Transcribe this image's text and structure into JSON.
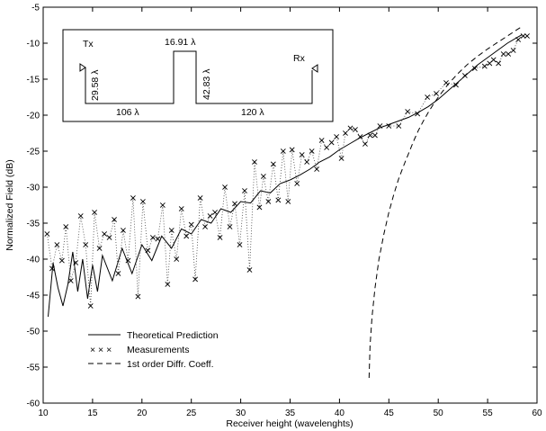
{
  "chart_data": {
    "type": "line",
    "xlabel": "Receiver height (wavelenghts)",
    "ylabel": "Normalized Field (dB)",
    "xlim": [
      10,
      60
    ],
    "ylim": [
      -60,
      -5
    ],
    "xticks": [
      10,
      15,
      20,
      25,
      30,
      35,
      40,
      45,
      50,
      55,
      60
    ],
    "yticks": [
      -60,
      -55,
      -50,
      -45,
      -40,
      -35,
      -30,
      -25,
      -20,
      -15,
      -10,
      -5
    ],
    "grid": false,
    "legend_position": "bottom-left",
    "legend": [
      {
        "label": "Theoretical Prediction",
        "style": "solid"
      },
      {
        "label": "Measurements",
        "style": "crosses"
      },
      {
        "label": "1st order Diffr. Coeff.",
        "style": "dashed"
      }
    ],
    "series": [
      {
        "name": "Theoretical Prediction",
        "style": "solid",
        "x": [
          10.5,
          11.0,
          11.5,
          12.0,
          12.5,
          13.0,
          13.5,
          14.0,
          14.5,
          15.0,
          15.5,
          16.0,
          17.0,
          18.0,
          19.0,
          20.0,
          21.0,
          22.0,
          23.0,
          24.0,
          25.0,
          26.0,
          27.0,
          28.0,
          29.0,
          30.0,
          31.0,
          32.0,
          33.0,
          34.0,
          35.0,
          36.0,
          37.0,
          38.0,
          39.0,
          40.0,
          41.0,
          42.0,
          43.0,
          44.0,
          45.0,
          46.0,
          47.0,
          48.0,
          49.0,
          50.0,
          51.0,
          52.0,
          53.0,
          54.0,
          55.0,
          56.0,
          57.0,
          58.0,
          58.5
        ],
        "y": [
          -48.0,
          -40.5,
          -44.0,
          -46.5,
          -43.5,
          -39.0,
          -44.5,
          -40.0,
          -45.5,
          -40.8,
          -44.5,
          -39.5,
          -43.0,
          -38.5,
          -42.0,
          -38.0,
          -40.2,
          -36.8,
          -38.5,
          -35.8,
          -36.5,
          -34.5,
          -35.0,
          -33.0,
          -33.5,
          -32.0,
          -32.2,
          -30.5,
          -30.8,
          -29.5,
          -29.0,
          -28.3,
          -27.5,
          -26.5,
          -25.8,
          -24.8,
          -24.0,
          -23.2,
          -22.5,
          -21.8,
          -21.3,
          -20.8,
          -20.3,
          -19.6,
          -18.8,
          -17.8,
          -16.6,
          -15.4,
          -14.2,
          -13.0,
          -12.0,
          -11.0,
          -10.0,
          -9.2,
          -8.8
        ]
      },
      {
        "name": "Measurements",
        "style": "crosses-dotted",
        "x": [
          10.4,
          10.9,
          11.4,
          11.9,
          12.3,
          12.8,
          13.3,
          13.8,
          14.3,
          14.8,
          15.2,
          15.7,
          16.2,
          16.7,
          17.2,
          17.6,
          18.1,
          18.6,
          19.1,
          19.6,
          20.1,
          20.6,
          21.1,
          21.6,
          22.1,
          22.6,
          23.0,
          23.5,
          24.0,
          24.5,
          25.0,
          25.4,
          25.9,
          26.4,
          26.9,
          27.4,
          27.9,
          28.4,
          28.9,
          29.4,
          29.9,
          30.4,
          30.9,
          31.4,
          31.9,
          32.3,
          32.8,
          33.3,
          33.8,
          34.3,
          34.8,
          35.2,
          35.7,
          36.2,
          36.7,
          37.2,
          37.7,
          38.2,
          38.7,
          39.2,
          39.7,
          40.2,
          40.6,
          41.1,
          41.6,
          42.1,
          42.6,
          43.1,
          43.6,
          44.1,
          45.0,
          46.0,
          46.9,
          47.9,
          48.9,
          49.8,
          50.8,
          51.8,
          52.7,
          53.7,
          54.7,
          55.2,
          55.6,
          56.1,
          56.6,
          57.1,
          57.6,
          58.1,
          58.6,
          59.0
        ],
        "y": [
          -36.5,
          -41.3,
          -38.0,
          -40.2,
          -35.5,
          -43.0,
          -40.5,
          -34.0,
          -38.0,
          -46.5,
          -33.5,
          -38.5,
          -36.5,
          -37.0,
          -34.5,
          -42.0,
          -36.0,
          -40.2,
          -31.5,
          -45.2,
          -32.0,
          -38.8,
          -37.0,
          -37.2,
          -32.5,
          -43.5,
          -36.0,
          -40.0,
          -33.0,
          -36.8,
          -35.2,
          -42.8,
          -31.5,
          -35.5,
          -34.0,
          -33.5,
          -37.0,
          -30.0,
          -35.5,
          -32.3,
          -38.0,
          -30.5,
          -41.5,
          -26.5,
          -32.8,
          -28.5,
          -32.0,
          -26.8,
          -31.8,
          -25.0,
          -32.0,
          -24.8,
          -29.5,
          -25.5,
          -26.5,
          -25.0,
          -27.5,
          -23.5,
          -24.5,
          -23.8,
          -23.0,
          -26.0,
          -22.5,
          -21.8,
          -22.0,
          -23.0,
          -24.0,
          -22.8,
          -22.8,
          -21.5,
          -21.5,
          -21.5,
          -19.5,
          -19.8,
          -17.5,
          -17.0,
          -15.5,
          -15.8,
          -14.5,
          -13.5,
          -13.2,
          -12.8,
          -12.3,
          -12.8,
          -11.5,
          -11.5,
          -11.0,
          -9.5,
          -9.0,
          -9.0
        ]
      },
      {
        "name": "1st order Diffr. Coeff.",
        "style": "dashed",
        "x": [
          43.0,
          43.1,
          43.3,
          43.6,
          44.0,
          44.5,
          45.0,
          45.5,
          46.0,
          46.5,
          47.0,
          47.5,
          48.0,
          48.5,
          49.0,
          49.5,
          50.0,
          51.0,
          52.0,
          53.0,
          54.0,
          55.0,
          56.0,
          57.0,
          58.0,
          58.6
        ],
        "y": [
          -56.5,
          -52.0,
          -48.0,
          -44.0,
          -40.0,
          -36.5,
          -33.5,
          -31.0,
          -28.8,
          -27.0,
          -25.3,
          -23.6,
          -22.1,
          -20.8,
          -19.6,
          -18.5,
          -17.5,
          -15.7,
          -14.2,
          -12.9,
          -11.8,
          -10.8,
          -9.9,
          -9.0,
          -8.1,
          -7.6
        ]
      }
    ],
    "inset": {
      "tx_label": "Tx",
      "rx_label": "Rx",
      "tx_height": "29.58 λ",
      "wall_width": "16.91 λ",
      "wall_height": "42.83 λ",
      "dist_tx_wall": "106 λ",
      "dist_wall_rx": "120 λ"
    }
  }
}
